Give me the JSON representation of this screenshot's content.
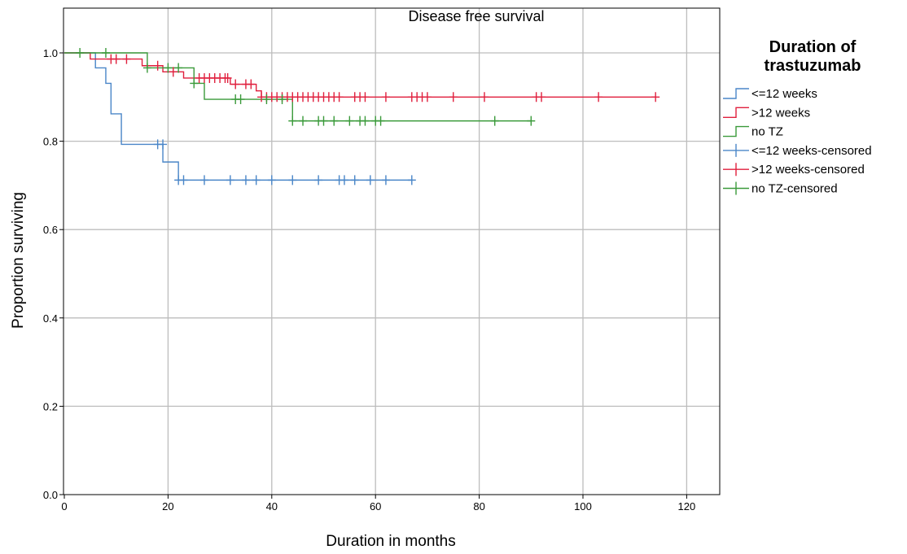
{
  "chart_data": {
    "type": "line",
    "title": "Disease free survival",
    "xlabel": "Duration in months",
    "ylabel": "Proportion surviving",
    "xlim": [
      0,
      126
    ],
    "ylim": [
      0,
      1.05
    ],
    "xticks": [
      0,
      20,
      40,
      60,
      80,
      100,
      120
    ],
    "yticks": [
      0.0,
      0.2,
      0.4,
      0.6,
      0.8,
      1.0
    ],
    "grid": true,
    "legend_position": "right",
    "legend_title": "Duration of trastuzumab",
    "legend_entries": [
      "<=12 weeks",
      ">12 weeks",
      "no TZ",
      "<=12 weeks-censored",
      ">12 weeks-censored",
      "no TZ-censored"
    ],
    "series": [
      {
        "name": "<=12 weeks",
        "color": "#4a86c8",
        "steps": [
          [
            0,
            1.0
          ],
          [
            6,
            0.966
          ],
          [
            8,
            0.931
          ],
          [
            9,
            0.862
          ],
          [
            11,
            0.793
          ],
          [
            19,
            0.753
          ],
          [
            22,
            0.712
          ],
          [
            67,
            0.712
          ]
        ],
        "censored": [
          [
            18,
            0.793
          ],
          [
            19,
            0.793
          ],
          [
            22,
            0.712
          ],
          [
            23,
            0.712
          ],
          [
            27,
            0.712
          ],
          [
            32,
            0.712
          ],
          [
            35,
            0.712
          ],
          [
            37,
            0.712
          ],
          [
            40,
            0.712
          ],
          [
            44,
            0.712
          ],
          [
            49,
            0.712
          ],
          [
            53,
            0.712
          ],
          [
            54,
            0.712
          ],
          [
            56,
            0.712
          ],
          [
            59,
            0.712
          ],
          [
            62,
            0.712
          ],
          [
            67,
            0.712
          ]
        ]
      },
      {
        "name": ">12 weeks",
        "color": "#e01f3d",
        "steps": [
          [
            0,
            1.0
          ],
          [
            5,
            0.986
          ],
          [
            15,
            0.971
          ],
          [
            19,
            0.957
          ],
          [
            23,
            0.943
          ],
          [
            32,
            0.929
          ],
          [
            37,
            0.914
          ],
          [
            38,
            0.9
          ],
          [
            114,
            0.9
          ]
        ],
        "censored": [
          [
            9,
            0.986
          ],
          [
            10,
            0.986
          ],
          [
            12,
            0.986
          ],
          [
            18,
            0.971
          ],
          [
            21,
            0.957
          ],
          [
            26,
            0.943
          ],
          [
            27,
            0.943
          ],
          [
            28,
            0.943
          ],
          [
            29,
            0.943
          ],
          [
            30,
            0.943
          ],
          [
            31,
            0.943
          ],
          [
            31.5,
            0.943
          ],
          [
            33,
            0.929
          ],
          [
            35,
            0.929
          ],
          [
            36,
            0.929
          ],
          [
            38,
            0.9
          ],
          [
            39,
            0.9
          ],
          [
            40,
            0.9
          ],
          [
            41,
            0.9
          ],
          [
            42,
            0.9
          ],
          [
            43,
            0.9
          ],
          [
            44,
            0.9
          ],
          [
            45,
            0.9
          ],
          [
            46,
            0.9
          ],
          [
            47,
            0.9
          ],
          [
            48,
            0.9
          ],
          [
            49,
            0.9
          ],
          [
            50,
            0.9
          ],
          [
            51,
            0.9
          ],
          [
            52,
            0.9
          ],
          [
            53,
            0.9
          ],
          [
            56,
            0.9
          ],
          [
            57,
            0.9
          ],
          [
            58,
            0.9
          ],
          [
            62,
            0.9
          ],
          [
            67,
            0.9
          ],
          [
            68,
            0.9
          ],
          [
            69,
            0.9
          ],
          [
            70,
            0.9
          ],
          [
            75,
            0.9
          ],
          [
            81,
            0.9
          ],
          [
            91,
            0.9
          ],
          [
            92,
            0.9
          ],
          [
            103,
            0.9
          ],
          [
            114,
            0.9
          ]
        ]
      },
      {
        "name": "no TZ",
        "color": "#3a9a3a",
        "steps": [
          [
            0,
            1.0
          ],
          [
            16,
            0.966
          ],
          [
            25,
            0.931
          ],
          [
            27,
            0.895
          ],
          [
            44,
            0.846
          ],
          [
            90,
            0.846
          ]
        ],
        "censored": [
          [
            3,
            1.0
          ],
          [
            8,
            1.0
          ],
          [
            16,
            0.966
          ],
          [
            20,
            0.966
          ],
          [
            22,
            0.966
          ],
          [
            25,
            0.931
          ],
          [
            33,
            0.895
          ],
          [
            34,
            0.895
          ],
          [
            39,
            0.895
          ],
          [
            42,
            0.895
          ],
          [
            44,
            0.846
          ],
          [
            46,
            0.846
          ],
          [
            49,
            0.846
          ],
          [
            50,
            0.846
          ],
          [
            52,
            0.846
          ],
          [
            55,
            0.846
          ],
          [
            57,
            0.846
          ],
          [
            58,
            0.846
          ],
          [
            60,
            0.846
          ],
          [
            61,
            0.846
          ],
          [
            83,
            0.846
          ],
          [
            90,
            0.846
          ]
        ]
      }
    ]
  }
}
